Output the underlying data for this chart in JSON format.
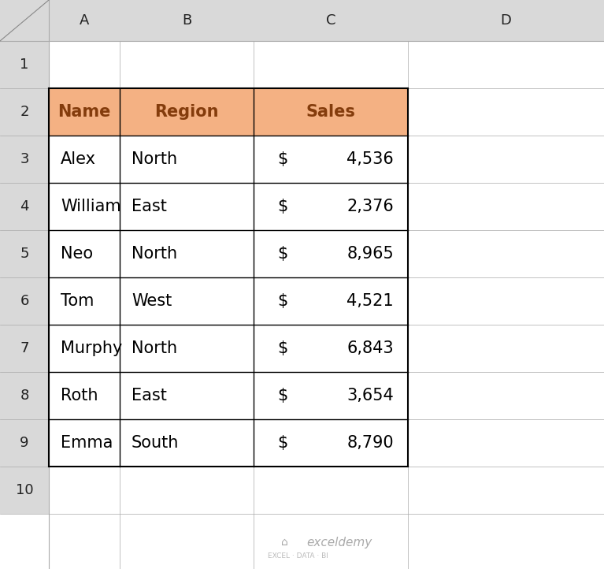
{
  "col_letter_labels": [
    "A",
    "B",
    "C",
    "D"
  ],
  "row_numbers": [
    "1",
    "2",
    "3",
    "4",
    "5",
    "6",
    "7",
    "8",
    "9",
    "10"
  ],
  "headers": [
    "Name",
    "Region",
    "Sales"
  ],
  "data_rows": [
    [
      "Alex",
      "North",
      "$",
      "4,536"
    ],
    [
      "William",
      "East",
      "$",
      "2,376"
    ],
    [
      "Neo",
      "North",
      "$",
      "8,965"
    ],
    [
      "Tom",
      "West",
      "$",
      "4,521"
    ],
    [
      "Murphy",
      "North",
      "$",
      "6,843"
    ],
    [
      "Roth",
      "East",
      "$",
      "3,654"
    ],
    [
      "Emma",
      "South",
      "$",
      "8,790"
    ]
  ],
  "header_bg": "#F4B183",
  "header_text_color": "#843C0C",
  "cell_bg": "#FFFFFF",
  "cell_text_color": "#000000",
  "grid_color": "#000000",
  "col_header_bg": "#D9D9D9",
  "bg_color": "#FFFFFF",
  "outer_bg": "#F2F2F2",
  "watermark_text": "exceldemy",
  "watermark_sub": "EXCEL · DATA · BI",
  "font_size_header": 15,
  "font_size_data": 15,
  "font_size_col_letters": 13,
  "font_size_row_numbers": 13
}
